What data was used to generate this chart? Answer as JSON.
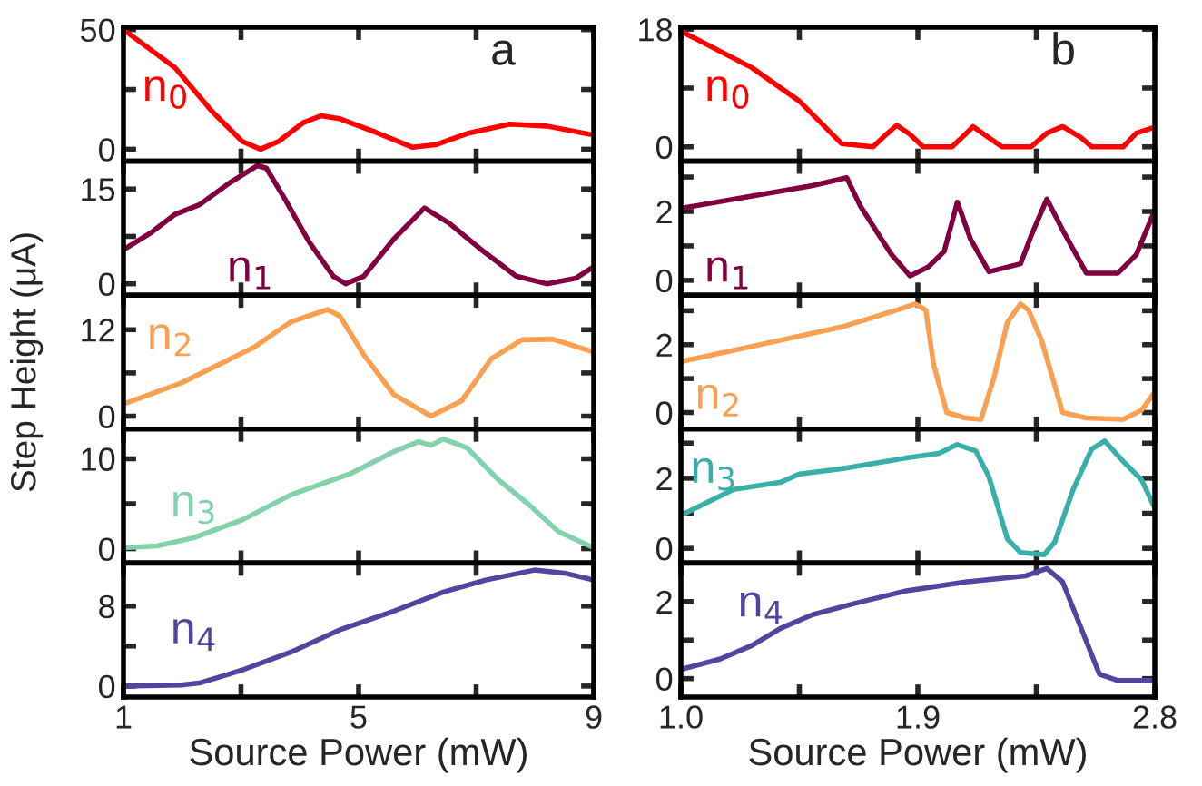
{
  "chart_data": [
    {
      "type": "line",
      "annotations": [
        "a"
      ],
      "xlim": [
        1,
        9
      ],
      "xticks": [
        1,
        {
          "value": 3,
          "label": null
        },
        5,
        {
          "value": 7,
          "label": null
        },
        9
      ],
      "ylim": [
        -5,
        51
      ],
      "yticks": [
        0,
        {
          "value": 25,
          "label": null
        },
        50
      ],
      "tick_labels": "y",
      "grid": false,
      "series": [
        {
          "name": "n$_{0}$",
          "color": "#ff0000",
          "x": [
            1,
            1.88,
            2.5,
            3.02,
            3.33,
            3.64,
            4.05,
            4.36,
            4.67,
            5.3,
            5.92,
            6.33,
            6.85,
            7.57,
            8.2,
            9
          ],
          "values": [
            50,
            34,
            16,
            3.3,
            0,
            3.3,
            11,
            14,
            12.8,
            7,
            0.8,
            2,
            6.6,
            10.5,
            9.7,
            5.9
          ]
        }
      ]
    },
    {
      "type": "line",
      "xlim": [
        1,
        9
      ],
      "xticks": [
        1,
        {
          "value": 3,
          "label": null
        },
        5,
        {
          "value": 7,
          "label": null
        },
        9
      ],
      "ylim": [
        -1.8,
        19.4
      ],
      "yticks": [
        0,
        {
          "value": 7.5,
          "label": null
        },
        15
      ],
      "tick_labels": "y",
      "grid": false,
      "series": [
        {
          "name": "n$_{1}$",
          "color": "#800040",
          "x": [
            1,
            1.47,
            1.88,
            2.29,
            2.81,
            3.28,
            3.43,
            3.74,
            4.16,
            4.57,
            4.78,
            5.09,
            5.6,
            6.12,
            6.54,
            7.06,
            7.68,
            8.2,
            8.7,
            9
          ],
          "values": [
            5.4,
            8.1,
            11,
            12.5,
            16,
            18.7,
            18.3,
            13.5,
            6.6,
            1.2,
            0,
            1.2,
            7.1,
            12,
            9.6,
            5.6,
            1.2,
            0,
            0.9,
            2.7
          ]
        }
      ]
    },
    {
      "type": "line",
      "ylabel": "Step Height (μA)",
      "xlim": [
        1,
        9
      ],
      "xticks": [
        1,
        {
          "value": 3,
          "label": null
        },
        5,
        {
          "value": 7,
          "label": null
        },
        9
      ],
      "ylim": [
        -1.8,
        16.8
      ],
      "yticks": [
        0,
        {
          "value": 6,
          "label": null
        },
        12
      ],
      "tick_labels": "y",
      "grid": false,
      "series": [
        {
          "name": "n$_{2}$",
          "color": "#f9a052",
          "x": [
            1,
            1.98,
            3.23,
            3.85,
            4.47,
            4.68,
            5.09,
            5.6,
            6.23,
            6.75,
            7.26,
            7.78,
            8.3,
            9
          ],
          "values": [
            1.7,
            4.6,
            9.6,
            13.1,
            14.8,
            13.9,
            8.5,
            3,
            0,
            2.1,
            8,
            10.6,
            10.7,
            8.9
          ]
        }
      ]
    },
    {
      "type": "line",
      "xlim": [
        1,
        9
      ],
      "xticks": [
        1,
        {
          "value": 3,
          "label": null
        },
        5,
        {
          "value": 7,
          "label": null
        },
        9
      ],
      "ylim": [
        -1.6,
        13.3
      ],
      "yticks": [
        0,
        {
          "value": 5,
          "label": null
        },
        10
      ],
      "tick_labels": "y",
      "grid": false,
      "series": [
        {
          "name": "n$_{3}$",
          "color": "#82d2ac",
          "x": [
            1,
            1.57,
            2.19,
            3.02,
            3.85,
            4.88,
            5.6,
            6.02,
            6.23,
            6.44,
            6.85,
            7.37,
            7.88,
            8.4,
            9
          ],
          "values": [
            0.1,
            0.3,
            1.2,
            3.2,
            6,
            8.4,
            10.8,
            11.9,
            11.5,
            12.2,
            11.2,
            7.7,
            5,
            1.9,
            0.1
          ]
        }
      ]
    },
    {
      "type": "line",
      "xlabel": "Source Power (mW)",
      "xlim": [
        1,
        9
      ],
      "xticks": [
        1,
        {
          "value": 3,
          "label": null
        },
        5,
        {
          "value": 7,
          "label": null
        },
        9
      ],
      "ylim": [
        -1.1,
        12.3
      ],
      "yticks": [
        0,
        {
          "value": 4,
          "label": null
        },
        8
      ],
      "grid": false,
      "series": [
        {
          "name": "n$_{4}$",
          "color": "#5444a0",
          "x": [
            1,
            1.98,
            2.29,
            3.02,
            3.85,
            4.67,
            5.6,
            6.44,
            7.16,
            7.99,
            8.5,
            9
          ],
          "values": [
            0,
            0.1,
            0.3,
            1.6,
            3.4,
            5.6,
            7.5,
            9.4,
            10.6,
            11.6,
            11.3,
            10.6
          ]
        }
      ]
    },
    {
      "type": "line",
      "annotations": [
        "b"
      ],
      "xlim": [
        1.0,
        2.8
      ],
      "xticks": [
        1.0,
        {
          "value": 1.45,
          "label": null
        },
        1.9,
        {
          "value": 2.35,
          "label": null
        },
        2.8
      ],
      "ylim": [
        -2.2,
        18.3
      ],
      "yticks": [
        0,
        {
          "value": 9,
          "label": null
        },
        18
      ],
      "tick_labels": "y",
      "grid": false,
      "series": [
        {
          "name": "n$_{0}$",
          "color": "#ff0000",
          "x": [
            1,
            1.27,
            1.45,
            1.61,
            1.73,
            1.78,
            1.82,
            1.87,
            1.92,
            2.03,
            2.08,
            2.11,
            2.17,
            2.22,
            2.33,
            2.39,
            2.45,
            2.52,
            2.56,
            2.68,
            2.73,
            2.8
          ],
          "values": [
            17.7,
            12.1,
            7,
            0.5,
            0,
            1.9,
            3.3,
            1.9,
            0,
            0,
            1.9,
            3.1,
            1.4,
            0,
            0,
            2.1,
            3.1,
            1.4,
            0,
            0,
            2.1,
            3
          ]
        }
      ]
    },
    {
      "type": "line",
      "xlim": [
        1.0,
        2.8
      ],
      "xticks": [
        1.0,
        {
          "value": 1.45,
          "label": null
        },
        1.9,
        {
          "value": 2.35,
          "label": null
        },
        2.8
      ],
      "ylim": [
        -0.43,
        3.46
      ],
      "yticks": [
        0,
        {
          "value": 1,
          "label": null
        },
        2,
        {
          "value": 3,
          "label": null
        }
      ],
      "tick_labels": "y",
      "grid": false,
      "series": [
        {
          "name": "n$_{1}$",
          "color": "#800040",
          "x": [
            1,
            1.27,
            1.5,
            1.63,
            1.68,
            1.74,
            1.8,
            1.87,
            1.94,
            2,
            2.05,
            2.1,
            2.17,
            2.29,
            2.33,
            2.39,
            2.45,
            2.54,
            2.66,
            2.73,
            2.8
          ],
          "values": [
            2.09,
            2.45,
            2.75,
            2.98,
            2.18,
            1.46,
            0.75,
            0.13,
            0.39,
            0.84,
            2.27,
            1.2,
            0.25,
            0.48,
            1.29,
            2.36,
            1.46,
            0.21,
            0.21,
            0.75,
            2.04
          ]
        }
      ]
    },
    {
      "type": "line",
      "xlim": [
        1.0,
        2.8
      ],
      "xticks": [
        1.0,
        {
          "value": 1.45,
          "label": null
        },
        1.9,
        {
          "value": 2.35,
          "label": null
        },
        2.8
      ],
      "ylim": [
        -0.49,
        3.46
      ],
      "yticks": [
        0,
        {
          "value": 1,
          "label": null
        },
        2,
        {
          "value": 3,
          "label": null
        }
      ],
      "tick_labels": "y",
      "grid": false,
      "series": [
        {
          "name": "n$_{2}$",
          "color": "#f9a052",
          "x": [
            1,
            1.27,
            1.61,
            1.82,
            1.89,
            1.93,
            1.96,
            2.01,
            2.08,
            2.14,
            2.19,
            2.24,
            2.29,
            2.32,
            2.37,
            2.45,
            2.54,
            2.68,
            2.75,
            2.8
          ],
          "values": [
            1.5,
            1.95,
            2.52,
            3.02,
            3.2,
            3.02,
            1.41,
            0,
            -0.16,
            -0.2,
            1.05,
            2.66,
            3.2,
            3.02,
            2.13,
            0,
            -0.16,
            -0.2,
            0.07,
            0.61
          ]
        }
      ]
    },
    {
      "type": "line",
      "xlim": [
        1.0,
        2.8
      ],
      "xticks": [
        1.0,
        {
          "value": 1.45,
          "label": null
        },
        1.9,
        {
          "value": 2.35,
          "label": null
        },
        2.8
      ],
      "ylim": [
        -0.42,
        3.4
      ],
      "yticks": [
        0,
        {
          "value": 1,
          "label": null
        },
        2,
        {
          "value": 3,
          "label": null
        }
      ],
      "tick_labels": "y",
      "grid": false,
      "series": [
        {
          "name": "n$_{3}$",
          "color": "#3aafa9",
          "x": [
            1,
            1.2,
            1.38,
            1.45,
            1.61,
            1.85,
            1.98,
            2.05,
            2.12,
            2.17,
            2.24,
            2.29,
            2.38,
            2.42,
            2.49,
            2.56,
            2.61,
            2.68,
            2.75,
            2.8
          ],
          "values": [
            0.94,
            1.68,
            1.89,
            2.12,
            2.27,
            2.57,
            2.71,
            2.96,
            2.78,
            2.04,
            0.27,
            -0.12,
            -0.18,
            0.18,
            1.68,
            2.83,
            3.06,
            2.48,
            1.95,
            1.15
          ]
        }
      ]
    },
    {
      "type": "line",
      "xlabel": "Source Power (mW)",
      "xlim": [
        1.0,
        2.8
      ],
      "xticks": [
        {
          "value": 1.0,
          "label": "1.0"
        },
        {
          "value": 1.45,
          "label": null
        },
        1.9,
        {
          "value": 2.35,
          "label": null
        },
        2.8
      ],
      "ylim": [
        -0.48,
        3.0
      ],
      "yticks": [
        0,
        {
          "value": 1,
          "label": null
        },
        2
      ],
      "grid": false,
      "series": [
        {
          "name": "n$_{4}$",
          "color": "#5444a0",
          "x": [
            1,
            1.15,
            1.27,
            1.38,
            1.5,
            1.66,
            1.85,
            2.08,
            2.31,
            2.39,
            2.45,
            2.52,
            2.59,
            2.66,
            2.8
          ],
          "values": [
            0.24,
            0.51,
            0.86,
            1.31,
            1.66,
            1.95,
            2.27,
            2.51,
            2.67,
            2.86,
            2.51,
            1.31,
            0.11,
            -0.05,
            -0.05
          ]
        }
      ]
    }
  ]
}
